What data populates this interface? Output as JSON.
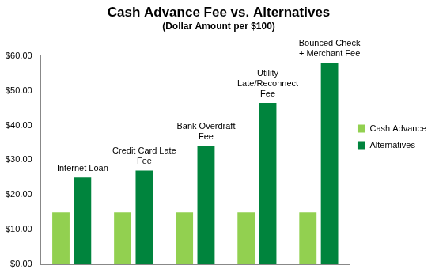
{
  "chart_data": {
    "type": "bar",
    "title": "Cash Advance Fee vs. Alternatives",
    "subtitle": "(Dollar Amount per $100)",
    "categories": [
      "Internet Loan",
      "Credit Card Late Fee",
      "Bank Overdraft Fee",
      "Utility Late/Reconnect Fee",
      "Bounced Check + Merchant Fee"
    ],
    "series": [
      {
        "name": "Cash Advance",
        "color": "#92d050",
        "values": [
          15,
          15,
          15,
          15,
          15
        ]
      },
      {
        "name": "Alternatives",
        "color": "#00843d",
        "values": [
          25,
          27,
          34,
          46.5,
          58
        ]
      }
    ],
    "ylim": [
      0,
      60
    ],
    "yticks": [
      {
        "value": 0,
        "label": "$0.00"
      },
      {
        "value": 10,
        "label": "$10.00"
      },
      {
        "value": 20,
        "label": "$20.00"
      },
      {
        "value": 30,
        "label": "$30.00"
      },
      {
        "value": 40,
        "label": "$40.00"
      },
      {
        "value": 50,
        "label": "$50.00"
      },
      {
        "value": 60,
        "label": "$60.00"
      }
    ],
    "grid": false,
    "legend": "right",
    "tick_labels": "y"
  }
}
